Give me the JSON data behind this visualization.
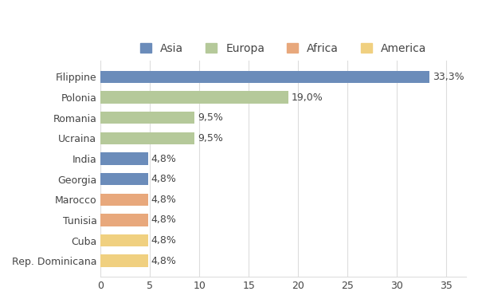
{
  "countries": [
    "Filippine",
    "Polonia",
    "Romania",
    "Ucraina",
    "India",
    "Georgia",
    "Marocco",
    "Tunisia",
    "Cuba",
    "Rep. Dominicana"
  ],
  "values": [
    33.3,
    19.0,
    9.5,
    9.5,
    4.8,
    4.8,
    4.8,
    4.8,
    4.8,
    4.8
  ],
  "labels": [
    "33,3%",
    "19,0%",
    "9,5%",
    "9,5%",
    "4,8%",
    "4,8%",
    "4,8%",
    "4,8%",
    "4,8%",
    "4,8%"
  ],
  "colors": [
    "#6b8cba",
    "#b5c99a",
    "#b5c99a",
    "#b5c99a",
    "#6b8cba",
    "#6b8cba",
    "#e8a87c",
    "#e8a87c",
    "#f0d080",
    "#f0d080"
  ],
  "legend_labels": [
    "Asia",
    "Europa",
    "Africa",
    "America"
  ],
  "legend_colors": [
    "#6b8cba",
    "#b5c99a",
    "#e8a87c",
    "#f0d080"
  ],
  "xlim": [
    0,
    37
  ],
  "xticks": [
    0,
    5,
    10,
    15,
    20,
    25,
    30,
    35
  ],
  "background_color": "#ffffff",
  "grid_color": "#dddddd",
  "bar_height": 0.6,
  "title_fontsize": 13,
  "subtitle_fontsize": 9,
  "label_fontsize": 9,
  "tick_fontsize": 9,
  "legend_fontsize": 10
}
